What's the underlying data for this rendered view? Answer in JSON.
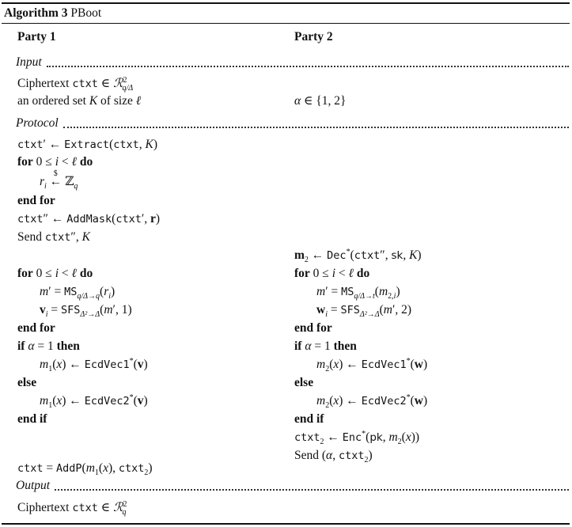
{
  "algorithm": {
    "label": "Algorithm 3",
    "name": "PBoot"
  },
  "headers": {
    "party1": "Party 1",
    "party2": "Party 2"
  },
  "sections": {
    "input": "Input",
    "protocol": "Protocol",
    "output": "Output"
  },
  "input": {
    "p1_line1": "Ciphertext ctxt ∈ ℛ²_{q/Δ}",
    "p1_line2": "an ordered set K of size ℓ",
    "p2_line1": "α ∈ {1, 2}"
  },
  "protocol_party1": [
    "ctxt′ ← Extract(ctxt, K)",
    "for 0 ≤ i < ℓ do",
    "r_i ←$ ℤ_q",
    "end for",
    "ctxt″ ← AddMask(ctxt′, r)",
    "Send ctxt″, K",
    "for 0 ≤ i < ℓ do",
    "m′ = MS_{q/Δ→q}(r_i)",
    "v_i = SFS_{Δ²→Δ}(m′, 1)",
    "end for",
    "if α = 1 then",
    "m₁(x) ← EcdVec1*(v)",
    "else",
    "m₁(x) ← EcdVec2*(v)",
    "end if",
    "ctxt = AddP(m₁(x), ctxt₂)"
  ],
  "protocol_party2": [
    "m₂ ← Dec*(ctxt″, sk, K)",
    "for 0 ≤ i < ℓ do",
    "m′ = MS_{q/Δ→t}(m_{2,i})",
    "w_i = SFS_{Δ²→Δ}(m′, 2)",
    "end for",
    "if α = 1 then",
    "m₂(x) ← EcdVec1*(w)",
    "else",
    "m₂(x) ← EcdVec2*(w)",
    "end if",
    "ctxt₂ ← Enc*(pk, m₂(x))",
    "Send (α, ctxt₂)"
  ],
  "output": {
    "p1_line1": "Ciphertext ctxt ∈ ℛ²_q"
  }
}
